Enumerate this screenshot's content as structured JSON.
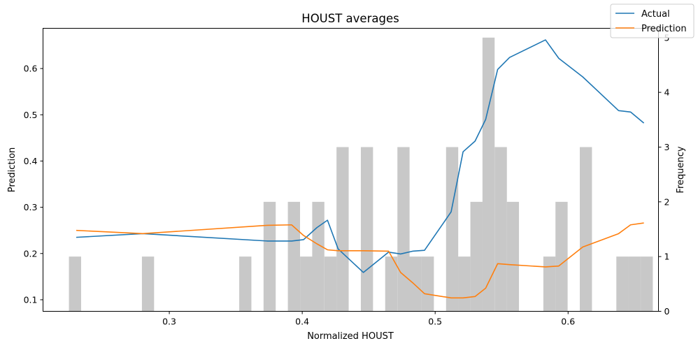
{
  "chart_data": {
    "type": "line",
    "title": "HOUST averages",
    "xlabel": "Normalized HOUST",
    "ylabel": "Prediction",
    "ylabel_right": "Frequency",
    "xlim": [
      0.205,
      0.668
    ],
    "ylim": [
      0.075,
      0.687
    ],
    "ylim_right": [
      0,
      5.17
    ],
    "x_ticks": [
      0.3,
      0.4,
      0.5,
      0.6
    ],
    "x_tick_labels": [
      "0.3",
      "0.4",
      "0.5",
      "0.6"
    ],
    "y_ticks": [
      0.1,
      0.2,
      0.3,
      0.4,
      0.5,
      0.6
    ],
    "y_tick_labels": [
      "0.1",
      "0.2",
      "0.3",
      "0.4",
      "0.5",
      "0.6"
    ],
    "y_right_ticks": [
      0,
      1,
      2,
      3,
      4,
      5
    ],
    "y_right_tick_labels": [
      "0",
      "1",
      "2",
      "3",
      "4",
      "5"
    ],
    "grid": false,
    "legend_position": "top-right",
    "series": [
      {
        "name": "Actual",
        "color": "#1f77b4",
        "x": [
          0.23,
          0.28,
          0.374,
          0.392,
          0.401,
          0.411,
          0.419,
          0.427,
          0.446,
          0.465,
          0.474,
          0.483,
          0.492,
          0.512,
          0.521,
          0.53,
          0.538,
          0.547,
          0.556,
          0.583,
          0.593,
          0.611,
          0.638,
          0.647,
          0.657
        ],
        "y": [
          0.235,
          0.243,
          0.227,
          0.227,
          0.23,
          0.256,
          0.272,
          0.21,
          0.159,
          0.203,
          0.199,
          0.205,
          0.207,
          0.29,
          0.42,
          0.443,
          0.49,
          0.598,
          0.624,
          0.662,
          0.622,
          0.582,
          0.509,
          0.506,
          0.482
        ]
      },
      {
        "name": "Prediction",
        "color": "#ff7f0e",
        "x": [
          0.23,
          0.28,
          0.374,
          0.392,
          0.401,
          0.411,
          0.419,
          0.427,
          0.446,
          0.465,
          0.474,
          0.483,
          0.492,
          0.512,
          0.521,
          0.53,
          0.538,
          0.547,
          0.556,
          0.583,
          0.593,
          0.611,
          0.638,
          0.647,
          0.657
        ],
        "y": [
          0.25,
          0.243,
          0.261,
          0.262,
          0.239,
          0.221,
          0.208,
          0.206,
          0.206,
          0.205,
          0.159,
          0.137,
          0.113,
          0.104,
          0.104,
          0.107,
          0.125,
          0.178,
          0.176,
          0.171,
          0.173,
          0.214,
          0.243,
          0.262,
          0.266
        ]
      }
    ],
    "histogram": {
      "color": "#c8c8c8",
      "bin_width": 0.00915,
      "bin_starts": [
        0.2245,
        0.2794,
        0.3526,
        0.3709,
        0.3892,
        0.3984,
        0.4075,
        0.4167,
        0.4258,
        0.4441,
        0.4624,
        0.4716,
        0.4807,
        0.4899,
        0.5082,
        0.5173,
        0.5265,
        0.5356,
        0.5448,
        0.5539,
        0.5814,
        0.5905,
        0.6088,
        0.6363,
        0.6454,
        0.6546
      ],
      "counts": [
        1,
        1,
        1,
        2,
        2,
        1,
        2,
        1,
        3,
        3,
        1,
        3,
        1,
        1,
        3,
        1,
        2,
        5,
        3,
        2,
        1,
        2,
        3,
        1,
        1,
        1
      ]
    }
  }
}
